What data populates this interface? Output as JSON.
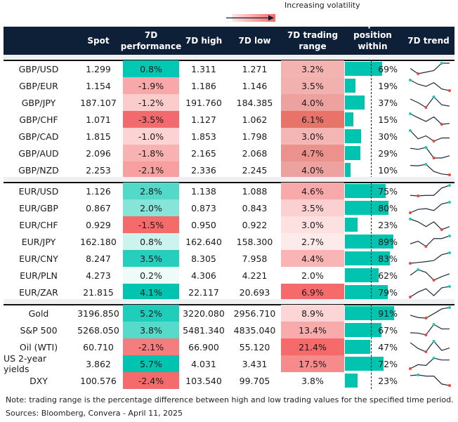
{
  "legend": {
    "label": "Increasing volatility",
    "gradient_colors": [
      "#fde6e6",
      "#f56a6a"
    ]
  },
  "header": {
    "name": "",
    "spot": "Spot",
    "perf": "7D performance",
    "high": "7D high",
    "low": "7D low",
    "range": "7D trading range",
    "position": "Spot position within range",
    "trend": "7D trend"
  },
  "colors": {
    "header_bg": "#0e1f38",
    "bar": "#00c4b0",
    "trend_line": "#1e2a3a",
    "trend_max": "#20c9b4",
    "trend_min": "#e64a3b"
  },
  "groups": [
    {
      "rows": [
        {
          "name": "GBP/USD",
          "spot": "1.299",
          "perf": "0.8%",
          "perf_color": "#00c8b3",
          "high": "1.311",
          "low": "1.271",
          "range": "3.2%",
          "range_color": "#f2b3b1",
          "position": "69%",
          "position_value": 69,
          "trend": [
            0.5,
            0,
            0.15,
            0.3,
            1,
            1
          ]
        },
        {
          "name": "GBP/EUR",
          "spot": "1.154",
          "perf": "-1.9%",
          "perf_color": "#f8a8a8",
          "high": "1.186",
          "low": "1.146",
          "range": "3.5%",
          "range_color": "#f2b0ae",
          "position": "19%",
          "position_value": 19,
          "trend": [
            1,
            0.6,
            0.4,
            0.75,
            0.15,
            0
          ]
        },
        {
          "name": "GBP/JPY",
          "spot": "187.107",
          "perf": "-1.2%",
          "perf_color": "#fbcccc",
          "high": "191.760",
          "low": "184.385",
          "range": "4.0%",
          "range_color": "#eea29f",
          "position": "37%",
          "position_value": 37,
          "trend": [
            0.8,
            0.45,
            0,
            1,
            0.25,
            0.12
          ]
        },
        {
          "name": "GBP/CHF",
          "spot": "1.071",
          "perf": "-3.5%",
          "perf_color": "#f26a6d",
          "high": "1.127",
          "low": "1.062",
          "range": "6.1%",
          "range_color": "#e8736a",
          "position": "15%",
          "position_value": 15,
          "trend": [
            1,
            0.62,
            0.27,
            0.7,
            0,
            0.08
          ]
        },
        {
          "name": "GBP/CAD",
          "spot": "1.815",
          "perf": "-1.0%",
          "perf_color": "#fcd2d2",
          "high": "1.853",
          "low": "1.798",
          "range": "3.0%",
          "range_color": "#f3b6b4",
          "position": "30%",
          "position_value": 30,
          "trend": [
            1,
            0.22,
            0.5,
            0,
            0.3,
            0.3
          ]
        },
        {
          "name": "GBP/AUD",
          "spot": "2.096",
          "perf": "-1.8%",
          "perf_color": "#f9b2b2",
          "high": "2.165",
          "low": "2.068",
          "range": "4.7%",
          "range_color": "#ec918c",
          "position": "29%",
          "position_value": 29,
          "trend": [
            0.92,
            0.82,
            1,
            0,
            0,
            0.21
          ]
        },
        {
          "name": "GBP/NZD",
          "spot": "2.253",
          "perf": "-2.1%",
          "perf_color": "#f8a0a0",
          "high": "2.336",
          "low": "2.245",
          "range": "4.0%",
          "range_color": "#eea29f",
          "position": "10%",
          "position_value": 10,
          "trend": [
            0.89,
            0.86,
            1,
            0.32,
            0.08,
            0
          ]
        }
      ]
    },
    {
      "rows": [
        {
          "name": "EUR/USD",
          "spot": "1.126",
          "perf": "2.8%",
          "perf_color": "#52d9c8",
          "high": "1.138",
          "low": "1.088",
          "range": "4.6%",
          "range_color": "#f8aaaa",
          "position": "75%",
          "position_value": 75,
          "trend": [
            0.05,
            0,
            0.05,
            0.05,
            0.75,
            1
          ]
        },
        {
          "name": "EUR/GBP",
          "spot": "0.867",
          "perf": "2.0%",
          "perf_color": "#86e4d8",
          "high": "0.873",
          "low": "0.843",
          "range": "3.5%",
          "range_color": "#fbd0d0",
          "position": "80%",
          "position_value": 80,
          "trend": [
            0,
            0.32,
            0.39,
            0.21,
            0.84,
            1
          ]
        },
        {
          "name": "EUR/CHF",
          "spot": "0.929",
          "perf": "-1.5%",
          "perf_color": "#f56b6b",
          "high": "0.950",
          "low": "0.922",
          "range": "3.0%",
          "range_color": "#fde0e0",
          "position": "23%",
          "position_value": 23,
          "trend": [
            1,
            0.74,
            0.29,
            0.74,
            0,
            0.29
          ]
        },
        {
          "name": "EUR/JPY",
          "spot": "162.180",
          "perf": "0.8%",
          "perf_color": "#cdf3ef",
          "high": "162.640",
          "low": "158.300",
          "range": "2.7%",
          "range_color": "#fdeaea",
          "position": "89%",
          "position_value": 89,
          "trend": [
            0.25,
            0.5,
            0,
            0.75,
            0.75,
            1
          ]
        },
        {
          "name": "EUR/CNY",
          "spot": "8.247",
          "perf": "3.5%",
          "perf_color": "#26cfbd",
          "high": "8.305",
          "low": "7.958",
          "range": "4.4%",
          "range_color": "#f9b4b4",
          "position": "83%",
          "position_value": 83,
          "trend": [
            0,
            0.08,
            0.16,
            0.27,
            0.81,
            1
          ]
        },
        {
          "name": "EUR/PLN",
          "spot": "4.273",
          "perf": "0.2%",
          "perf_color": "#eefbf9",
          "high": "4.306",
          "low": "4.221",
          "range": "2.0%",
          "range_color": "#ffffff",
          "position": "62%",
          "position_value": 62,
          "trend": [
            0.47,
            1,
            0.74,
            0,
            0.34,
            0.6
          ]
        },
        {
          "name": "EUR/ZAR",
          "spot": "21.815",
          "perf": "4.1%",
          "perf_color": "#00c4b0",
          "high": "22.117",
          "low": "20.693",
          "range": "6.9%",
          "range_color": "#f56a6a",
          "position": "79%",
          "position_value": 79,
          "trend": [
            0,
            0.47,
            0.79,
            0.13,
            0.87,
            1
          ]
        }
      ]
    },
    {
      "rows": [
        {
          "name": "Gold",
          "spot": "3196.850",
          "perf": "5.2%",
          "perf_color": "#1fcdbb",
          "high": "3220.080",
          "low": "2956.710",
          "range": "8.9%",
          "range_color": "#fcd6d6",
          "position": "91%",
          "position_value": 91,
          "trend": [
            0.27,
            0.05,
            0,
            0.42,
            0.87,
            1
          ]
        },
        {
          "name": "S&P 500",
          "spot": "5268.050",
          "perf": "3.8%",
          "perf_color": "#56dbcb",
          "high": "5481.340",
          "low": "4835.040",
          "range": "13.4%",
          "range_color": "#f9aaaa",
          "position": "67%",
          "position_value": 67,
          "trend": [
            0.21,
            0.17,
            0,
            1,
            0.57,
            0.57
          ]
        },
        {
          "name": "Oil (WTI)",
          "spot": "60.710",
          "perf": "-2.1%",
          "perf_color": "#f47e7e",
          "high": "66.900",
          "low": "55.120",
          "range": "21.4%",
          "range_color": "#f56a6a",
          "position": "47%",
          "position_value": 47,
          "trend": [
            0.87,
            0.31,
            0,
            1,
            0.13,
            0.36
          ]
        },
        {
          "name": "US 2-year yields",
          "spot": "3.862",
          "perf": "5.7%",
          "perf_color": "#00c4b0",
          "high": "4.031",
          "low": "3.431",
          "range": "17.5%",
          "range_color": "#f78a8a",
          "position": "72%",
          "position_value": 72,
          "trend": [
            0,
            0.38,
            0.3,
            1,
            0.82,
            0.82
          ]
        },
        {
          "name": "DXY",
          "spot": "100.576",
          "perf": "-2.4%",
          "perf_color": "#f56a6a",
          "high": "103.540",
          "low": "99.705",
          "range": "3.8%",
          "range_color": "#ffffff",
          "position": "23%",
          "position_value": 23,
          "trend": [
            0.94,
            1,
            0.89,
            0.89,
            0.14,
            0
          ]
        }
      ]
    }
  ],
  "footer": {
    "note": "Note: trading range is the percentage difference between high and low trading values for the specified time period.",
    "sources": "Sources: Bloomberg, Convera - April 11, 2025"
  }
}
